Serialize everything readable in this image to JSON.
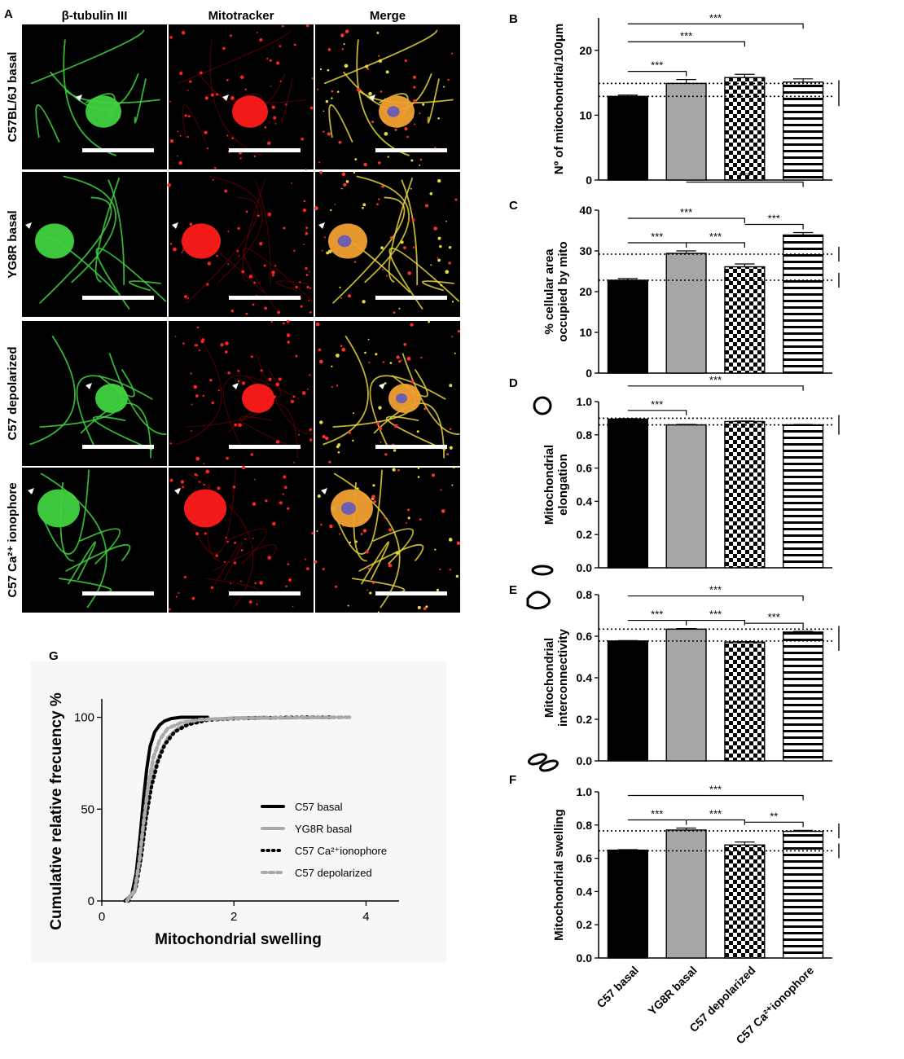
{
  "panel_labels": [
    "A",
    "B",
    "C",
    "D",
    "E",
    "F",
    "G"
  ],
  "micrograph": {
    "column_headers": [
      "β-tubulin III",
      "Mitotracker",
      "Merge"
    ],
    "row_labels": [
      "C57BL/6J basal",
      "YG8R basal",
      "C57 depolarized",
      "C57 Ca²⁺ ionophore"
    ],
    "colors": {
      "green": "#3fd23f",
      "red": "#ff1a1a",
      "merge": "#e5d23a",
      "background": "#000000",
      "scale_bar": "#ffffff"
    }
  },
  "groups": [
    "C57 basal",
    "YG8R basal",
    "C57 depolarized",
    "C57 Ca²⁺ionophore"
  ],
  "chart_data": [
    {
      "id": "B",
      "type": "bar",
      "categories": [
        "C57 basal",
        "YG8R basal",
        "C57 depolarized",
        "C57 Ca²⁺ionophore"
      ],
      "values": [
        12.9,
        14.9,
        15.8,
        15.1
      ],
      "errors": [
        0.2,
        0.6,
        0.5,
        0.5
      ],
      "ylabel": "Nº of mitochondria/100μm",
      "ylim": [
        0,
        25
      ],
      "yticks": [
        0,
        10,
        20
      ],
      "reference_lines": [
        12.9,
        14.9
      ],
      "significance": [
        {
          "from": 0,
          "to": 1,
          "label": "***"
        },
        {
          "from": 0,
          "to": 2,
          "label": "***"
        },
        {
          "from": 0,
          "to": 3,
          "label": "***"
        }
      ]
    },
    {
      "id": "C",
      "type": "bar",
      "categories": [
        "C57 basal",
        "YG8R basal",
        "C57 depolarized",
        "C57 Ca²⁺ionophore"
      ],
      "values": [
        22.8,
        29.4,
        26.1,
        33.9
      ],
      "errors": [
        0.4,
        0.6,
        0.7,
        0.6
      ],
      "ylabel": "% cellular area occupied by mito",
      "ylim": [
        0,
        40
      ],
      "yticks": [
        0,
        10,
        20,
        30,
        40
      ],
      "reference_lines": [
        22.8,
        29.2
      ],
      "significance": [
        {
          "from": 0,
          "to": 1,
          "label": "***"
        },
        {
          "from": 0,
          "to": 2,
          "label": "***"
        },
        {
          "from": 1,
          "to": 2,
          "label": "***"
        },
        {
          "from": 2,
          "to": 3,
          "label": "***"
        },
        {
          "from": 1,
          "to": 3,
          "label": "***"
        }
      ]
    },
    {
      "id": "D",
      "type": "bar",
      "categories": [
        "C57 basal",
        "YG8R basal",
        "C57 depolarized",
        "C57 Ca²⁺ionophore"
      ],
      "values": [
        0.895,
        0.86,
        0.88,
        0.86
      ],
      "errors": [
        0.003,
        0.003,
        0.003,
        0.002
      ],
      "ylabel": "Mitochondrial elongation",
      "ylim": [
        0,
        1.0
      ],
      "yticks": [
        0.0,
        0.2,
        0.4,
        0.6,
        0.8,
        1.0
      ],
      "reference_lines": [
        0.9,
        0.86
      ],
      "significance": [
        {
          "from": 0,
          "to": 1,
          "label": "***"
        },
        {
          "from": 0,
          "to": 3,
          "label": "***"
        }
      ]
    },
    {
      "id": "E",
      "type": "bar",
      "categories": [
        "C57 basal",
        "YG8R basal",
        "C57 depolarized",
        "C57 Ca²⁺ionophore"
      ],
      "values": [
        0.577,
        0.634,
        0.572,
        0.62
      ],
      "errors": [
        0.002,
        0.003,
        0.002,
        0.003
      ],
      "ylabel": "Mitochondrial interconnectivity",
      "ylim": [
        0,
        0.8
      ],
      "yticks": [
        0.0,
        0.2,
        0.4,
        0.6,
        0.8
      ],
      "reference_lines": [
        0.634,
        0.577
      ],
      "significance": [
        {
          "from": 0,
          "to": 1,
          "label": "***"
        },
        {
          "from": 1,
          "to": 2,
          "label": "***"
        },
        {
          "from": 2,
          "to": 3,
          "label": "***"
        },
        {
          "from": 0,
          "to": 3,
          "label": "***"
        }
      ]
    },
    {
      "id": "F",
      "type": "bar",
      "categories": [
        "C57 basal",
        "YG8R basal",
        "C57 depolarized",
        "C57 Ca²⁺ionophore"
      ],
      "values": [
        0.649,
        0.77,
        0.68,
        0.762
      ],
      "errors": [
        0.003,
        0.012,
        0.018,
        0.006
      ],
      "ylabel": "Mitochondrial swelling",
      "ylim": [
        0,
        1.0
      ],
      "yticks": [
        0.0,
        0.2,
        0.4,
        0.6,
        0.8,
        1.0
      ],
      "reference_lines": [
        0.765,
        0.645
      ],
      "significance": [
        {
          "from": 0,
          "to": 1,
          "label": "***"
        },
        {
          "from": 1,
          "to": 2,
          "label": "***"
        },
        {
          "from": 2,
          "to": 3,
          "label": "**"
        },
        {
          "from": 0,
          "to": 3,
          "label": "***"
        }
      ]
    },
    {
      "id": "G",
      "type": "line",
      "xlabel": "Mitochondrial swelling",
      "ylabel": "Cumulative relative frecuency %",
      "xlim": [
        0,
        4.5
      ],
      "ylim": [
        0,
        110
      ],
      "xticks": [
        0,
        2,
        4
      ],
      "yticks": [
        0,
        50,
        100
      ],
      "legend_position": "center-right",
      "series": [
        {
          "name": "C57 basal",
          "style": "solid",
          "color": "#000000",
          "x": [
            0.35,
            0.45,
            0.52,
            0.58,
            0.63,
            0.68,
            0.73,
            0.8,
            0.88,
            0.95,
            1.05,
            1.2,
            1.6
          ],
          "y": [
            0,
            3,
            15,
            35,
            55,
            72,
            84,
            92,
            96,
            98,
            99.3,
            100,
            100
          ]
        },
        {
          "name": "YG8R basal",
          "style": "solid",
          "color": "#aaaaaa",
          "x": [
            0.38,
            0.5,
            0.58,
            0.65,
            0.72,
            0.8,
            0.9,
            1.0,
            1.15,
            1.35,
            1.6,
            2.0,
            2.5
          ],
          "y": [
            0,
            5,
            20,
            40,
            58,
            72,
            82,
            89,
            94,
            97,
            98.8,
            99.6,
            100
          ]
        },
        {
          "name": "C57 Ca²⁺ionophore",
          "style": "dotted",
          "color": "#000000",
          "x": [
            0.4,
            0.52,
            0.6,
            0.67,
            0.75,
            0.85,
            0.95,
            1.1,
            1.3,
            1.6,
            2.0,
            2.5,
            3.0,
            3.5
          ],
          "y": [
            0,
            8,
            25,
            45,
            62,
            76,
            85,
            92,
            96,
            98.5,
            99.3,
            99.7,
            100,
            100
          ]
        },
        {
          "name": "C57 depolarized",
          "style": "dashed",
          "color": "#aaaaaa",
          "x": [
            0.38,
            0.5,
            0.57,
            0.63,
            0.7,
            0.78,
            0.88,
            1.0,
            1.2,
            1.5,
            2.0,
            2.6,
            3.2,
            3.75
          ],
          "y": [
            0,
            6,
            22,
            42,
            62,
            78,
            88,
            94,
            97,
            98.8,
            99.4,
            99.7,
            99.9,
            100
          ]
        }
      ]
    }
  ]
}
